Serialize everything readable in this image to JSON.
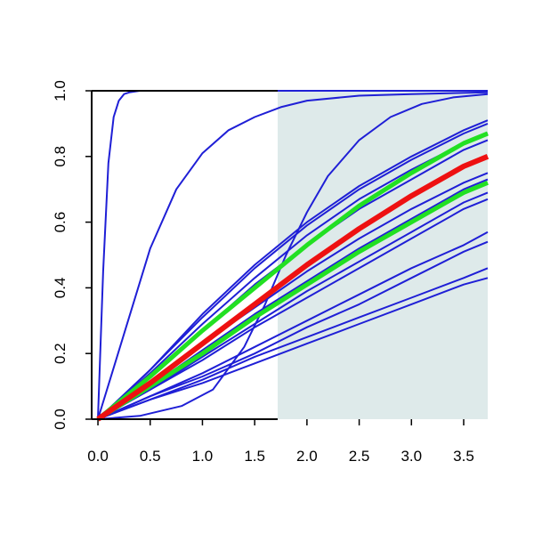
{
  "chart_data": {
    "type": "line",
    "title": "",
    "xlabel": "",
    "ylabel": "",
    "xlim": [
      -0.06,
      3.73
    ],
    "ylim": [
      0,
      1
    ],
    "x_ticks": [
      "0.0",
      "0.5",
      "1.0",
      "1.5",
      "2.0",
      "2.5",
      "3.0",
      "3.5"
    ],
    "y_ticks": [
      "0.0",
      "0.2",
      "0.4",
      "0.6",
      "0.8",
      "1.0"
    ],
    "grid": false,
    "legend": "none",
    "shaded_region": {
      "x_from": 1.72,
      "x_to": 3.73,
      "y_from": 0,
      "y_to": 1,
      "color": "#deeaea"
    },
    "colors": {
      "series": "#1f1fd6",
      "highlight": "#ee1111",
      "band": "#22e022",
      "axis": "#000000"
    },
    "series": [
      {
        "x": [
          0,
          0.05,
          0.1,
          0.15,
          0.2,
          0.25,
          0.3,
          0.4,
          0.6,
          3.73
        ],
        "values": [
          0.0,
          0.45,
          0.78,
          0.92,
          0.97,
          0.99,
          0.995,
          1.0,
          1.0,
          1.0
        ]
      },
      {
        "x": [
          0,
          0.25,
          0.5,
          0.75,
          1.0,
          1.25,
          1.5,
          1.75,
          2.0,
          2.5,
          3.0,
          3.73
        ],
        "values": [
          0.0,
          0.26,
          0.52,
          0.7,
          0.81,
          0.88,
          0.92,
          0.95,
          0.97,
          0.985,
          0.99,
          0.995
        ]
      },
      {
        "x": [
          0,
          0.4,
          0.8,
          1.1,
          1.4,
          1.6,
          1.8,
          2.0,
          2.2,
          2.5,
          2.8,
          3.1,
          3.4,
          3.73
        ],
        "values": [
          0.0,
          0.01,
          0.04,
          0.09,
          0.22,
          0.35,
          0.5,
          0.63,
          0.74,
          0.85,
          0.92,
          0.96,
          0.98,
          0.99
        ]
      },
      {
        "x": [
          0,
          0.5,
          1.0,
          1.5,
          2.0,
          2.5,
          3.0,
          3.5,
          3.73
        ],
        "values": [
          0.0,
          0.15,
          0.32,
          0.47,
          0.6,
          0.71,
          0.8,
          0.88,
          0.91
        ]
      },
      {
        "x": [
          0,
          0.5,
          1.0,
          1.5,
          2.0,
          2.5,
          3.0,
          3.5,
          3.73
        ],
        "values": [
          0.0,
          0.15,
          0.31,
          0.46,
          0.59,
          0.7,
          0.79,
          0.87,
          0.9
        ]
      },
      {
        "x": [
          0,
          0.5,
          1.0,
          1.5,
          2.0,
          2.5,
          3.0,
          3.5,
          3.73
        ],
        "values": [
          0.0,
          0.14,
          0.29,
          0.43,
          0.56,
          0.67,
          0.76,
          0.84,
          0.87
        ]
      },
      {
        "x": [
          0,
          0.5,
          1.0,
          1.5,
          2.0,
          2.5,
          3.0,
          3.5,
          3.73
        ],
        "values": [
          0.0,
          0.13,
          0.27,
          0.41,
          0.53,
          0.64,
          0.73,
          0.82,
          0.85
        ]
      },
      {
        "x": [
          0,
          0.5,
          1.0,
          1.5,
          2.0,
          2.5,
          3.0,
          3.5,
          3.73
        ],
        "values": [
          0.0,
          0.11,
          0.23,
          0.34,
          0.45,
          0.55,
          0.64,
          0.72,
          0.75
        ]
      },
      {
        "x": [
          0,
          0.5,
          1.0,
          1.5,
          2.0,
          2.5,
          3.0,
          3.5,
          3.73
        ],
        "values": [
          0.0,
          0.1,
          0.21,
          0.32,
          0.42,
          0.52,
          0.61,
          0.7,
          0.73
        ]
      },
      {
        "x": [
          0,
          0.5,
          1.0,
          1.5,
          2.0,
          2.5,
          3.0,
          3.5,
          3.73
        ],
        "values": [
          0.0,
          0.09,
          0.19,
          0.29,
          0.39,
          0.48,
          0.57,
          0.66,
          0.69
        ]
      },
      {
        "x": [
          0,
          0.5,
          1.0,
          1.5,
          2.0,
          2.5,
          3.0,
          3.5,
          3.73
        ],
        "values": [
          0.0,
          0.09,
          0.18,
          0.28,
          0.37,
          0.46,
          0.55,
          0.64,
          0.67
        ]
      },
      {
        "x": [
          0,
          0.5,
          1.0,
          1.5,
          2.0,
          2.5,
          3.0,
          3.5,
          3.73
        ],
        "values": [
          0.0,
          0.07,
          0.14,
          0.22,
          0.3,
          0.38,
          0.46,
          0.53,
          0.57
        ]
      },
      {
        "x": [
          0,
          0.5,
          1.0,
          1.5,
          2.0,
          2.5,
          3.0,
          3.5,
          3.73
        ],
        "values": [
          0.0,
          0.07,
          0.13,
          0.2,
          0.28,
          0.35,
          0.43,
          0.51,
          0.54
        ]
      },
      {
        "x": [
          0,
          0.5,
          1.0,
          1.5,
          2.0,
          2.5,
          3.0,
          3.5,
          3.73
        ],
        "values": [
          0.0,
          0.06,
          0.12,
          0.19,
          0.25,
          0.31,
          0.37,
          0.43,
          0.46
        ]
      },
      {
        "x": [
          0,
          0.5,
          1.0,
          1.5,
          2.0,
          2.5,
          3.0,
          3.5,
          3.73
        ],
        "values": [
          0.0,
          0.06,
          0.11,
          0.17,
          0.23,
          0.29,
          0.35,
          0.41,
          0.43
        ]
      }
    ],
    "band_series": [
      {
        "x": [
          0,
          0.5,
          1.0,
          1.5,
          2.0,
          2.5,
          3.0,
          3.5,
          3.73
        ],
        "values": [
          0.0,
          0.13,
          0.27,
          0.4,
          0.53,
          0.65,
          0.75,
          0.84,
          0.87
        ]
      },
      {
        "x": [
          0,
          0.5,
          1.0,
          1.5,
          2.0,
          2.5,
          3.0,
          3.5,
          3.73
        ],
        "values": [
          0.0,
          0.1,
          0.2,
          0.31,
          0.41,
          0.51,
          0.6,
          0.69,
          0.72
        ]
      }
    ],
    "highlight_series": {
      "x": [
        0,
        0.5,
        1.0,
        1.5,
        2.0,
        2.5,
        3.0,
        3.5,
        3.73
      ],
      "values": [
        0.0,
        0.11,
        0.23,
        0.35,
        0.47,
        0.58,
        0.68,
        0.77,
        0.8
      ]
    }
  }
}
